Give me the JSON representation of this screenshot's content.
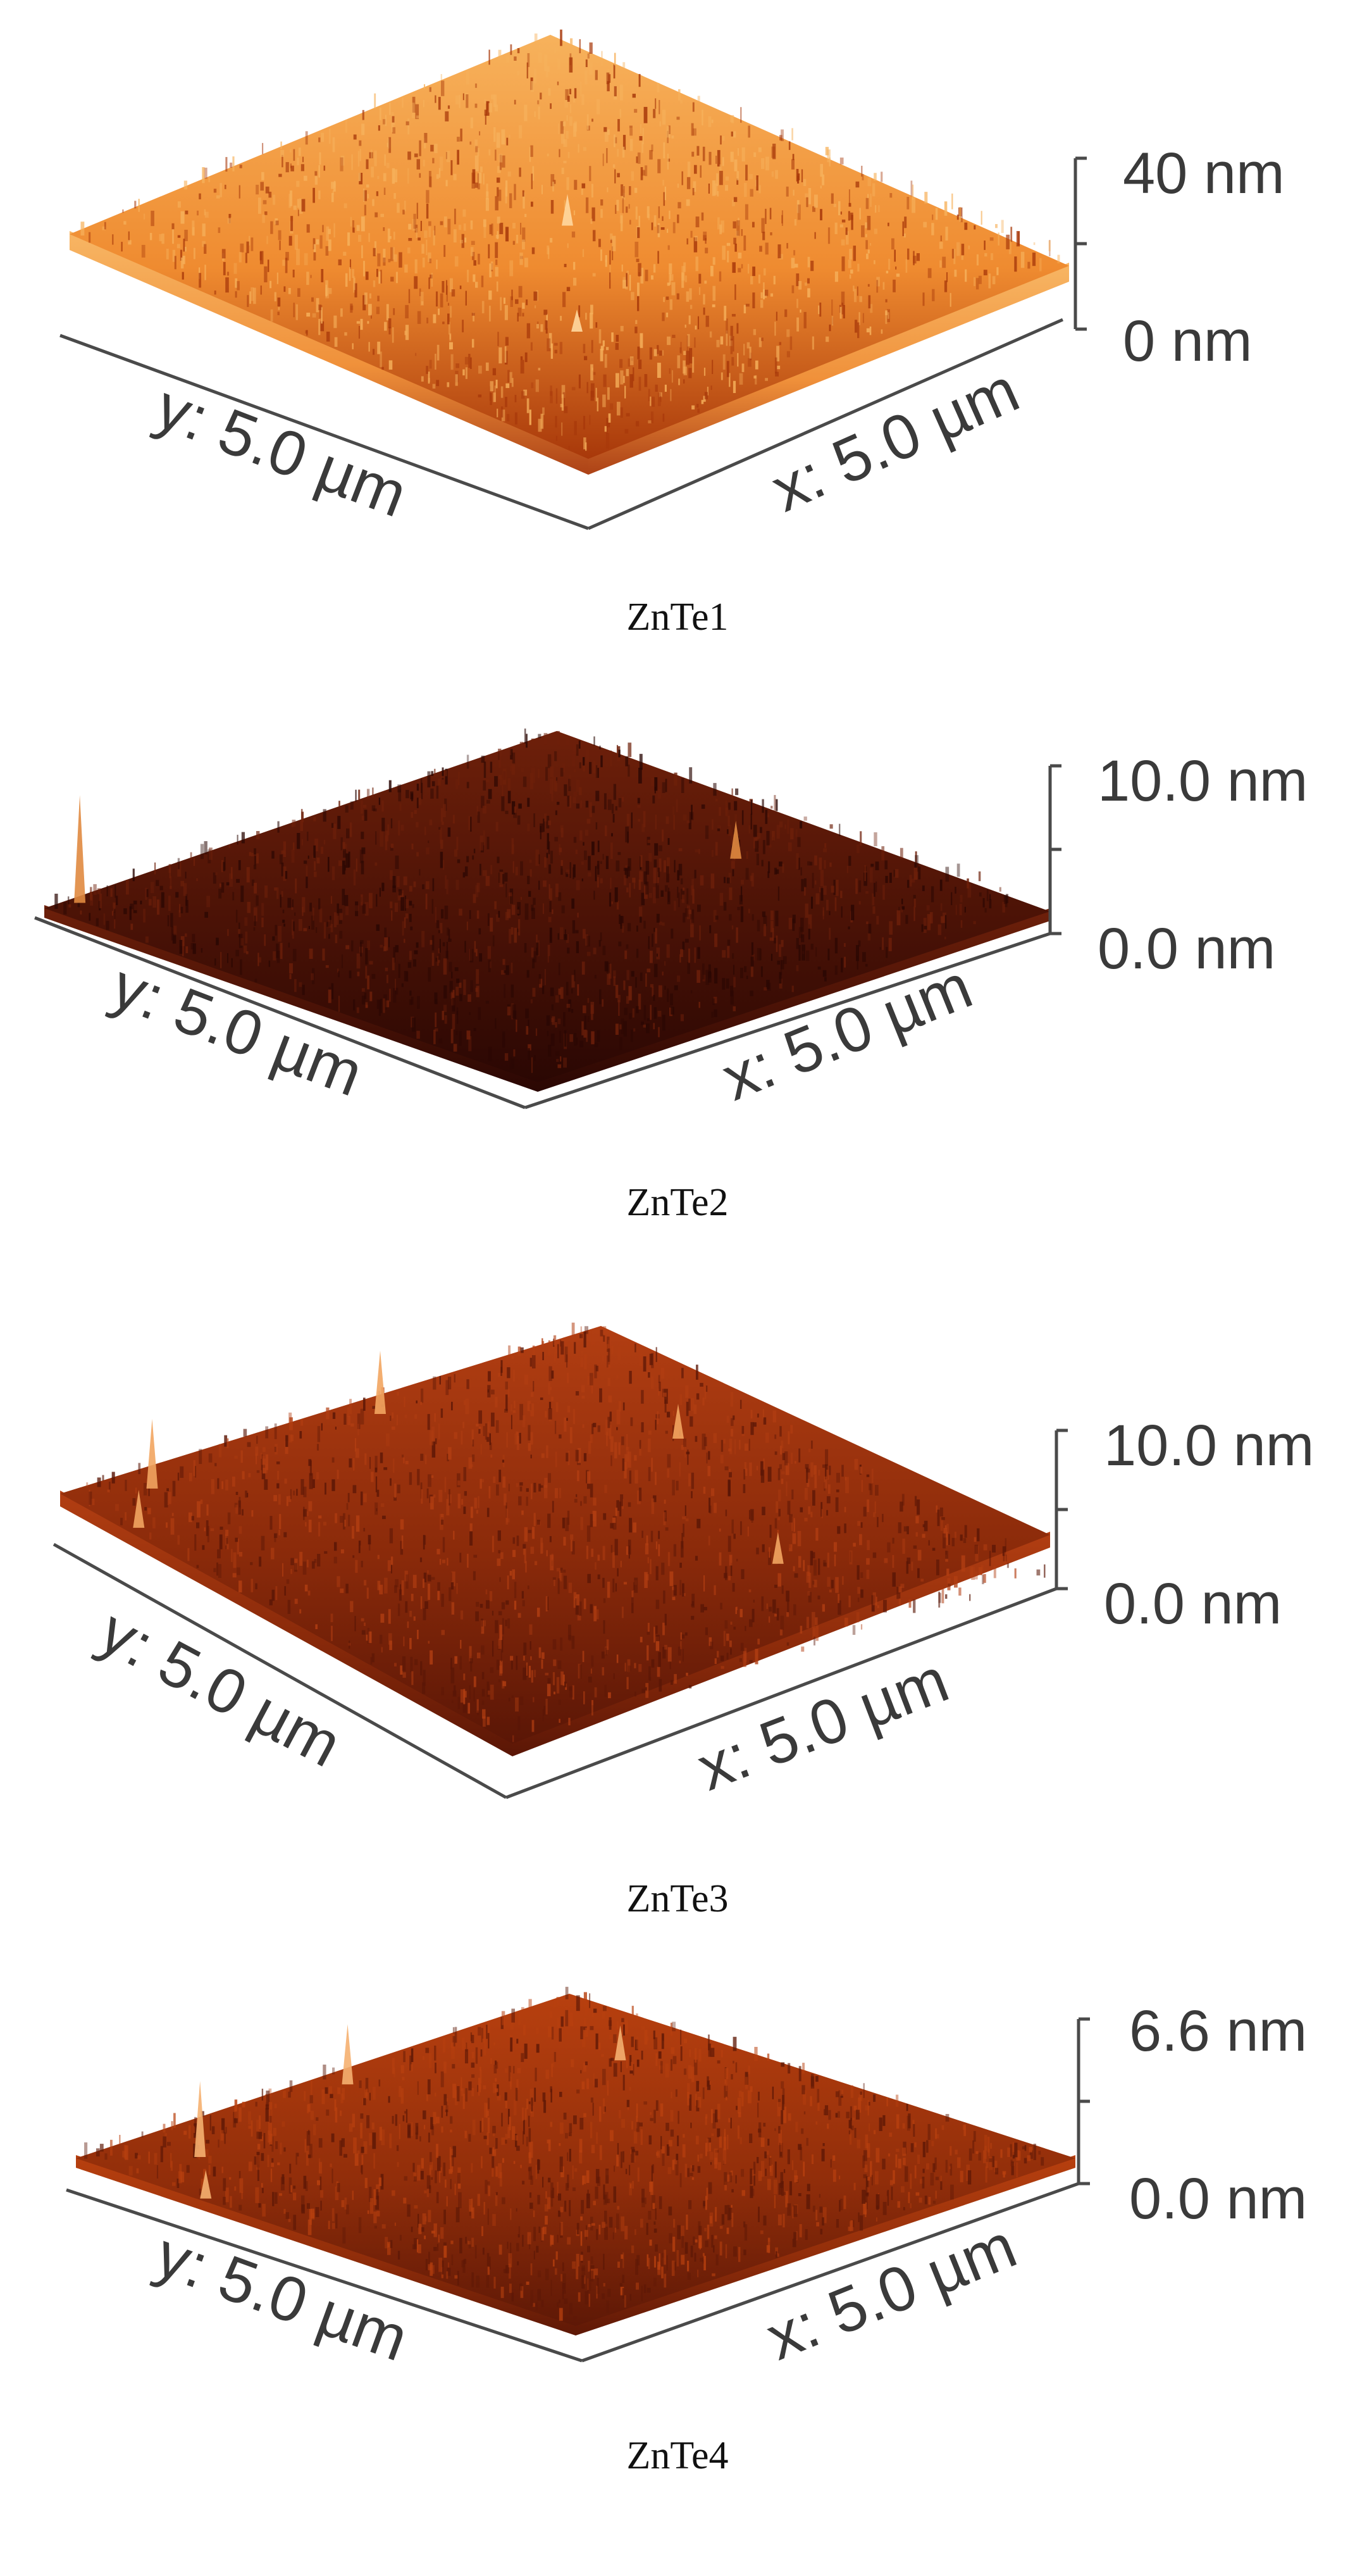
{
  "panels": [
    {
      "caption": "ZnTe1",
      "z_top": "40 nm",
      "z_bottom": "0 nm",
      "x_label": "x: 5.0 µm",
      "y_label": "y: 5.0 µm",
      "colors": {
        "top": "#f7b25c",
        "mid": "#ef8b30",
        "bottom": "#a8380a",
        "spike": "#ffd8a0"
      }
    },
    {
      "caption": "ZnTe2",
      "z_top": "10.0 nm",
      "z_bottom": "0.0 nm",
      "x_label": "x: 5.0 µm",
      "y_label": "y: 5.0 µm",
      "colors": {
        "top": "#6e200a",
        "mid": "#4a1206",
        "bottom": "#2a0703",
        "spike": "#e08a40"
      }
    },
    {
      "caption": "ZnTe3",
      "z_top": "10.0 nm",
      "z_bottom": "0.0 nm",
      "x_label": "x: 5.0 µm",
      "y_label": "y: 5.0 µm",
      "colors": {
        "top": "#b23e12",
        "mid": "#8a2a0a",
        "bottom": "#5a1606",
        "spike": "#f2a560"
      }
    },
    {
      "caption": "ZnTe4",
      "z_top": "6.6 nm",
      "z_bottom": "0.0 nm",
      "x_label": "x: 5.0 µm",
      "y_label": "y: 5.0 µm",
      "colors": {
        "top": "#b8400f",
        "mid": "#922e0a",
        "bottom": "#5e1806",
        "spike": "#f5b070"
      }
    }
  ]
}
